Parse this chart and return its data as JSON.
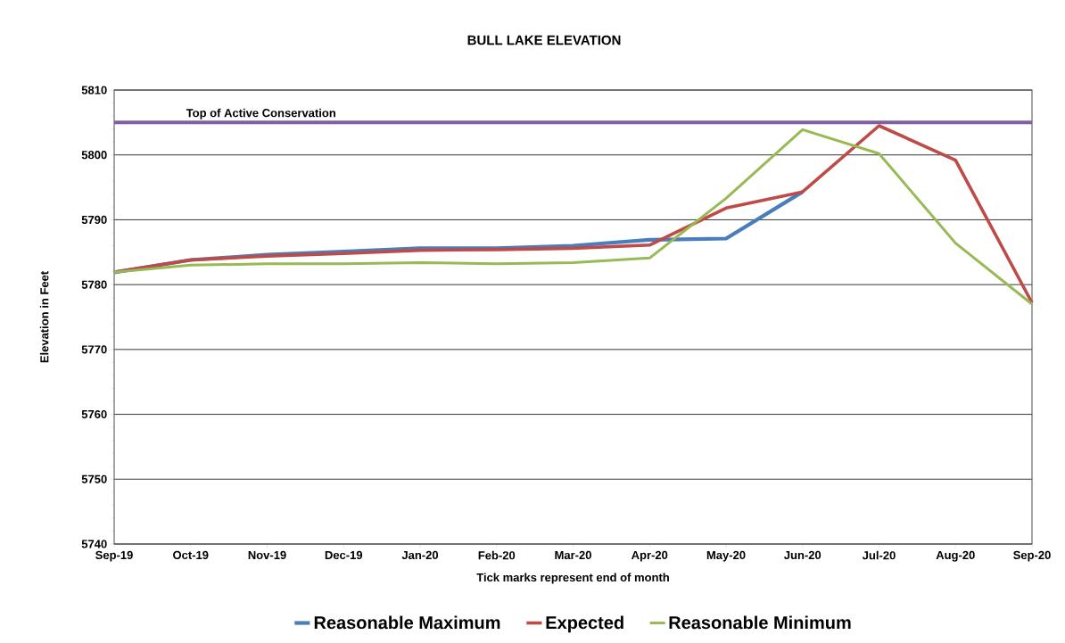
{
  "chart_data": {
    "type": "line",
    "title": "BULL LAKE ELEVATION",
    "xlabel": "Tick marks represent end of month",
    "ylabel": "Elevation in Feet",
    "categories": [
      "Sep-19",
      "Oct-19",
      "Nov-19",
      "Dec-19",
      "Jan-20",
      "Feb-20",
      "Mar-20",
      "Apr-20",
      "May-20",
      "Jun-20",
      "Jul-20",
      "Aug-20",
      "Sep-20"
    ],
    "series": [
      {
        "name": "Reasonable Maximum",
        "color": "#4a7ebb",
        "values": [
          5781.9,
          5783.8,
          5784.6,
          5785.1,
          5785.6,
          5785.6,
          5786.0,
          5786.9,
          5787.1,
          5794.3,
          null,
          null,
          null
        ]
      },
      {
        "name": "Expected",
        "color": "#be4b48",
        "values": [
          5781.9,
          5783.8,
          5784.4,
          5784.8,
          5785.3,
          5785.4,
          5785.6,
          5786.1,
          5791.8,
          5794.3,
          5804.5,
          5799.2,
          5777.2
        ]
      },
      {
        "name": "Reasonable Minimum",
        "color": "#98b954",
        "values": [
          5781.9,
          5783.0,
          5783.2,
          5783.2,
          5783.4,
          5783.2,
          5783.4,
          5784.1,
          5793.3,
          5803.9,
          5800.2,
          5786.4,
          5777.0
        ]
      }
    ],
    "ylim": [
      5740,
      5810
    ],
    "yticks": [
      5740,
      5750,
      5760,
      5770,
      5780,
      5790,
      5800,
      5810
    ],
    "ref_lines": [
      {
        "axis": "y",
        "value": 5805,
        "label": "Top of Active Conservation",
        "color": "#7f5fa0"
      }
    ],
    "grid": "y",
    "legend": "bottom"
  }
}
